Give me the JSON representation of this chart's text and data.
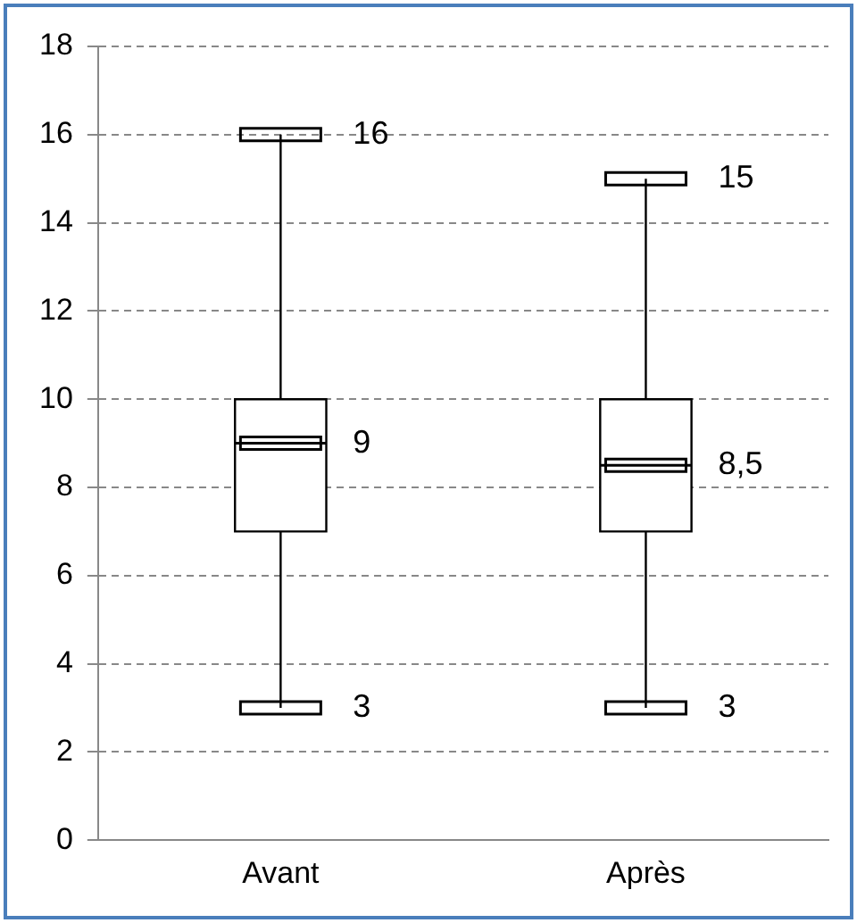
{
  "chart_data": {
    "type": "box",
    "categories": [
      "Avant",
      "Après"
    ],
    "boxes": [
      {
        "low": 3,
        "q1": 7,
        "median": 9,
        "q3": 10,
        "high": 16
      },
      {
        "low": 3,
        "q1": 7,
        "median": 8.5,
        "q3": 10,
        "high": 15
      }
    ],
    "ylim": [
      0,
      18
    ],
    "yticks": [
      0,
      2,
      4,
      6,
      8,
      10,
      12,
      14,
      16,
      18
    ],
    "grid": "y",
    "legend": false,
    "annotations": [
      {
        "text": "16",
        "x": "Avant",
        "y": 16
      },
      {
        "text": "9",
        "x": "Avant",
        "y": 9
      },
      {
        "text": "3",
        "x": "Avant",
        "y": 3
      },
      {
        "text": "15",
        "x": "Après",
        "y": 15
      },
      {
        "text": "8,5",
        "x": "Après",
        "y": 8.5
      },
      {
        "text": "3",
        "x": "Après",
        "y": 3
      }
    ]
  }
}
